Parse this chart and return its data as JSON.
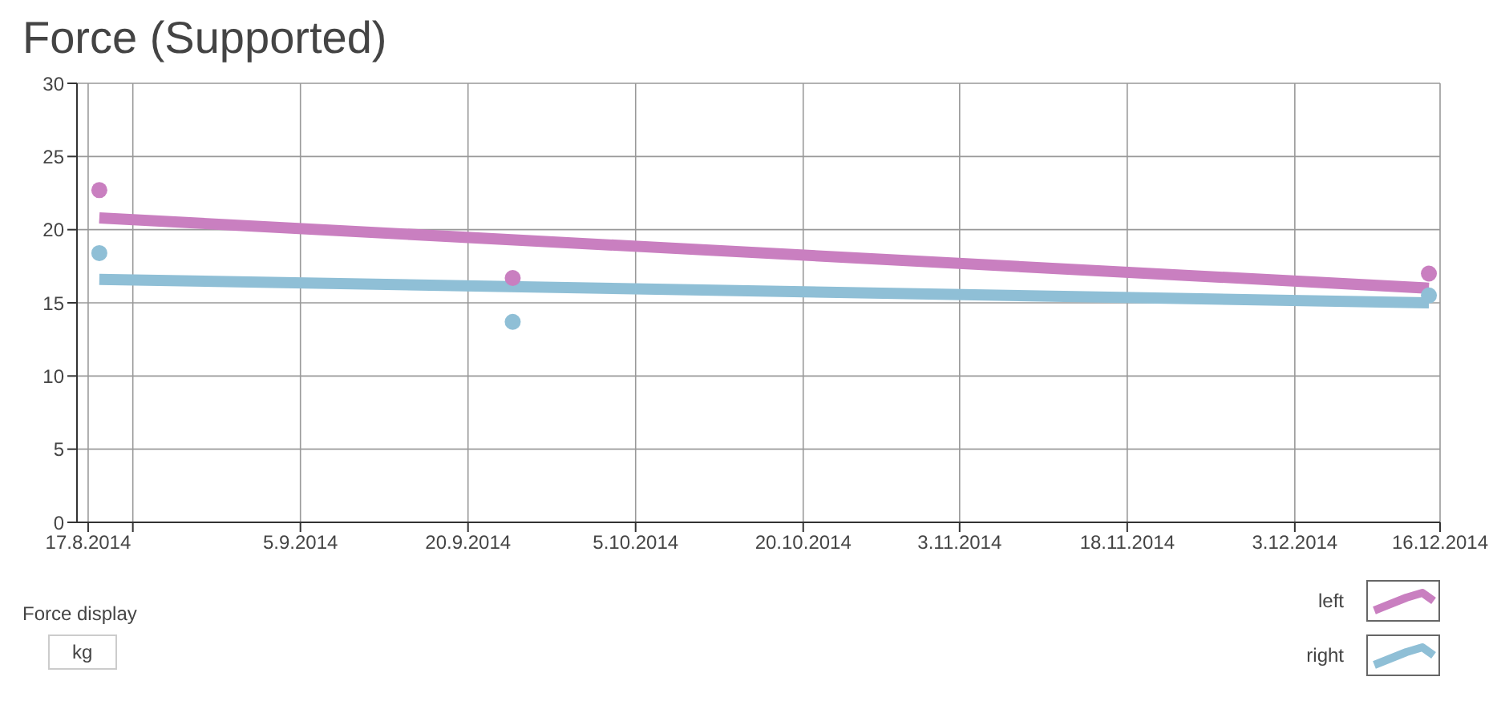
{
  "chart_data": {
    "type": "scatter",
    "title": "Force (Supported)",
    "annotations": [
      "Force display",
      "kg"
    ],
    "xlim": [
      "2014-08-16",
      "2014-12-16"
    ],
    "xticks": [
      {
        "value": "2014-08-17",
        "label": "17.8.2014"
      },
      {
        "value": "2014-08-21",
        "label": null
      },
      {
        "value": "2014-09-05",
        "label": "5.9.2014"
      },
      {
        "value": "2014-09-20",
        "label": "20.9.2014"
      },
      {
        "value": "2014-10-05",
        "label": "5.10.2014"
      },
      {
        "value": "2014-10-20",
        "label": "20.10.2014"
      },
      {
        "value": "2014-11-03",
        "label": "3.11.2014"
      },
      {
        "value": "2014-11-18",
        "label": "18.11.2014"
      },
      {
        "value": "2014-12-03",
        "label": "3.12.2014"
      },
      {
        "value": "2014-12-16",
        "label": "16.12.2014"
      }
    ],
    "ylim": [
      0,
      30
    ],
    "yticks": [
      0,
      5,
      10,
      15,
      20,
      25,
      30
    ],
    "grid": true,
    "legend": "bottom right",
    "series": [
      {
        "name": "left",
        "marker": "circle",
        "color": "#c97fc0",
        "x": [
          "2014-08-18",
          "2014-09-24",
          "2014-12-15"
        ],
        "values": [
          22.7,
          16.7,
          17.0
        ]
      },
      {
        "name": "right",
        "marker": "circle",
        "color": "#8fbfd6",
        "x": [
          "2014-08-18",
          "2014-09-24",
          "2014-12-15"
        ],
        "values": [
          18.4,
          13.7,
          15.5
        ]
      },
      {
        "type": "line",
        "marker": "none",
        "line_style": "solid",
        "color": "#c97fc0",
        "x": [
          "2014-08-18",
          "2014-12-15"
        ],
        "values": [
          20.8,
          16.0
        ]
      },
      {
        "type": "line",
        "marker": "none",
        "line_style": "solid",
        "color": "#8fbfd6",
        "x": [
          "2014-08-18",
          "2014-12-15"
        ],
        "values": [
          16.6,
          15.0
        ]
      }
    ]
  }
}
